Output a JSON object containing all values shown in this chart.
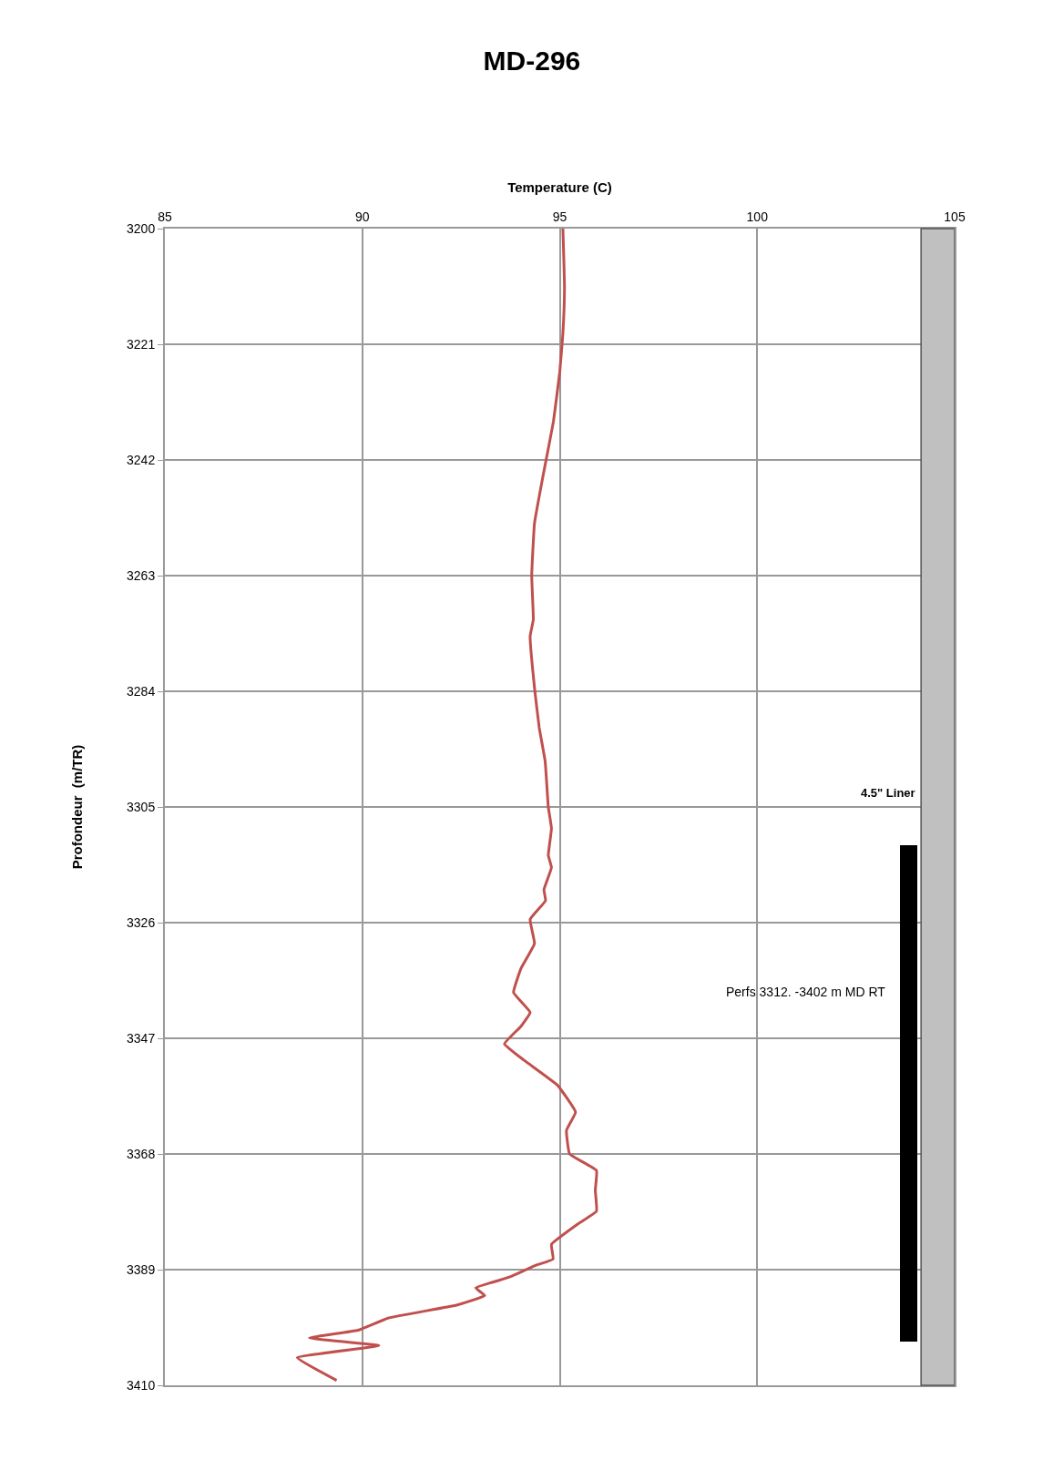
{
  "chart_data": {
    "type": "line",
    "title": "MD-296",
    "xlabel": "Temperature (C)",
    "ylabel": "Profondeur  (m/TR)",
    "series": [
      {
        "color": "#c0504d",
        "x": [
          95.08,
          95.12,
          95.08,
          95.0,
          94.84,
          94.6,
          94.36,
          94.29,
          94.33,
          94.25,
          94.37,
          94.48,
          94.63,
          94.71,
          94.79,
          94.71,
          94.79,
          94.6,
          94.64,
          94.25,
          94.36,
          94.02,
          93.83,
          94.25,
          94.02,
          93.6,
          94.1,
          94.94,
          95.4,
          95.17,
          95.25,
          95.93,
          95.9,
          95.93,
          95.48,
          94.79,
          94.83,
          94.4,
          93.71,
          92.87,
          93.1,
          92.41,
          90.65,
          89.89,
          88.66,
          90.42,
          88.35,
          89.35
        ],
        "values": [
          3200,
          3210.7,
          3219,
          3226,
          3235,
          3244,
          3253.5,
          3263,
          3271,
          3274,
          3284,
          3290.6,
          3296.7,
          3305,
          3308.9,
          3313.8,
          3316,
          3320,
          3322,
          3325.4,
          3329.8,
          3334.3,
          3338.7,
          3342.3,
          3344.8,
          3348,
          3351,
          3355.5,
          3360.4,
          3363.7,
          3368,
          3371,
          3374.6,
          3378.4,
          3380.6,
          3384.4,
          3387.1,
          3388.2,
          3390.4,
          3392.3,
          3393.7,
          3395.4,
          3397.8,
          3400,
          3401.4,
          3402.8,
          3405,
          3409.1
        ]
      },
      {
        "type": "bar",
        "color": "#000000",
        "x": [
          103.83
        ],
        "base": [
          3312
        ],
        "values": [
          90
        ]
      }
    ],
    "annotations": [
      "Perfs 3312. -3402 m MD RT"
    ],
    "xlim": [
      85,
      105
    ],
    "xticks": [
      85,
      90,
      95,
      100,
      105
    ],
    "ylim": [
      3410,
      3200
    ],
    "yticks": [
      3200,
      3221,
      3242,
      3263,
      3284,
      3305,
      3326,
      3347,
      3368,
      3389,
      3410
    ],
    "grid": true,
    "line_style": "solid",
    "marker": "none",
    "bands": [
      {
        "axis": "x",
        "from": 104.15,
        "to": 105,
        "label": "4.5\" Liner",
        "color": "#c0c0c0"
      }
    ]
  }
}
